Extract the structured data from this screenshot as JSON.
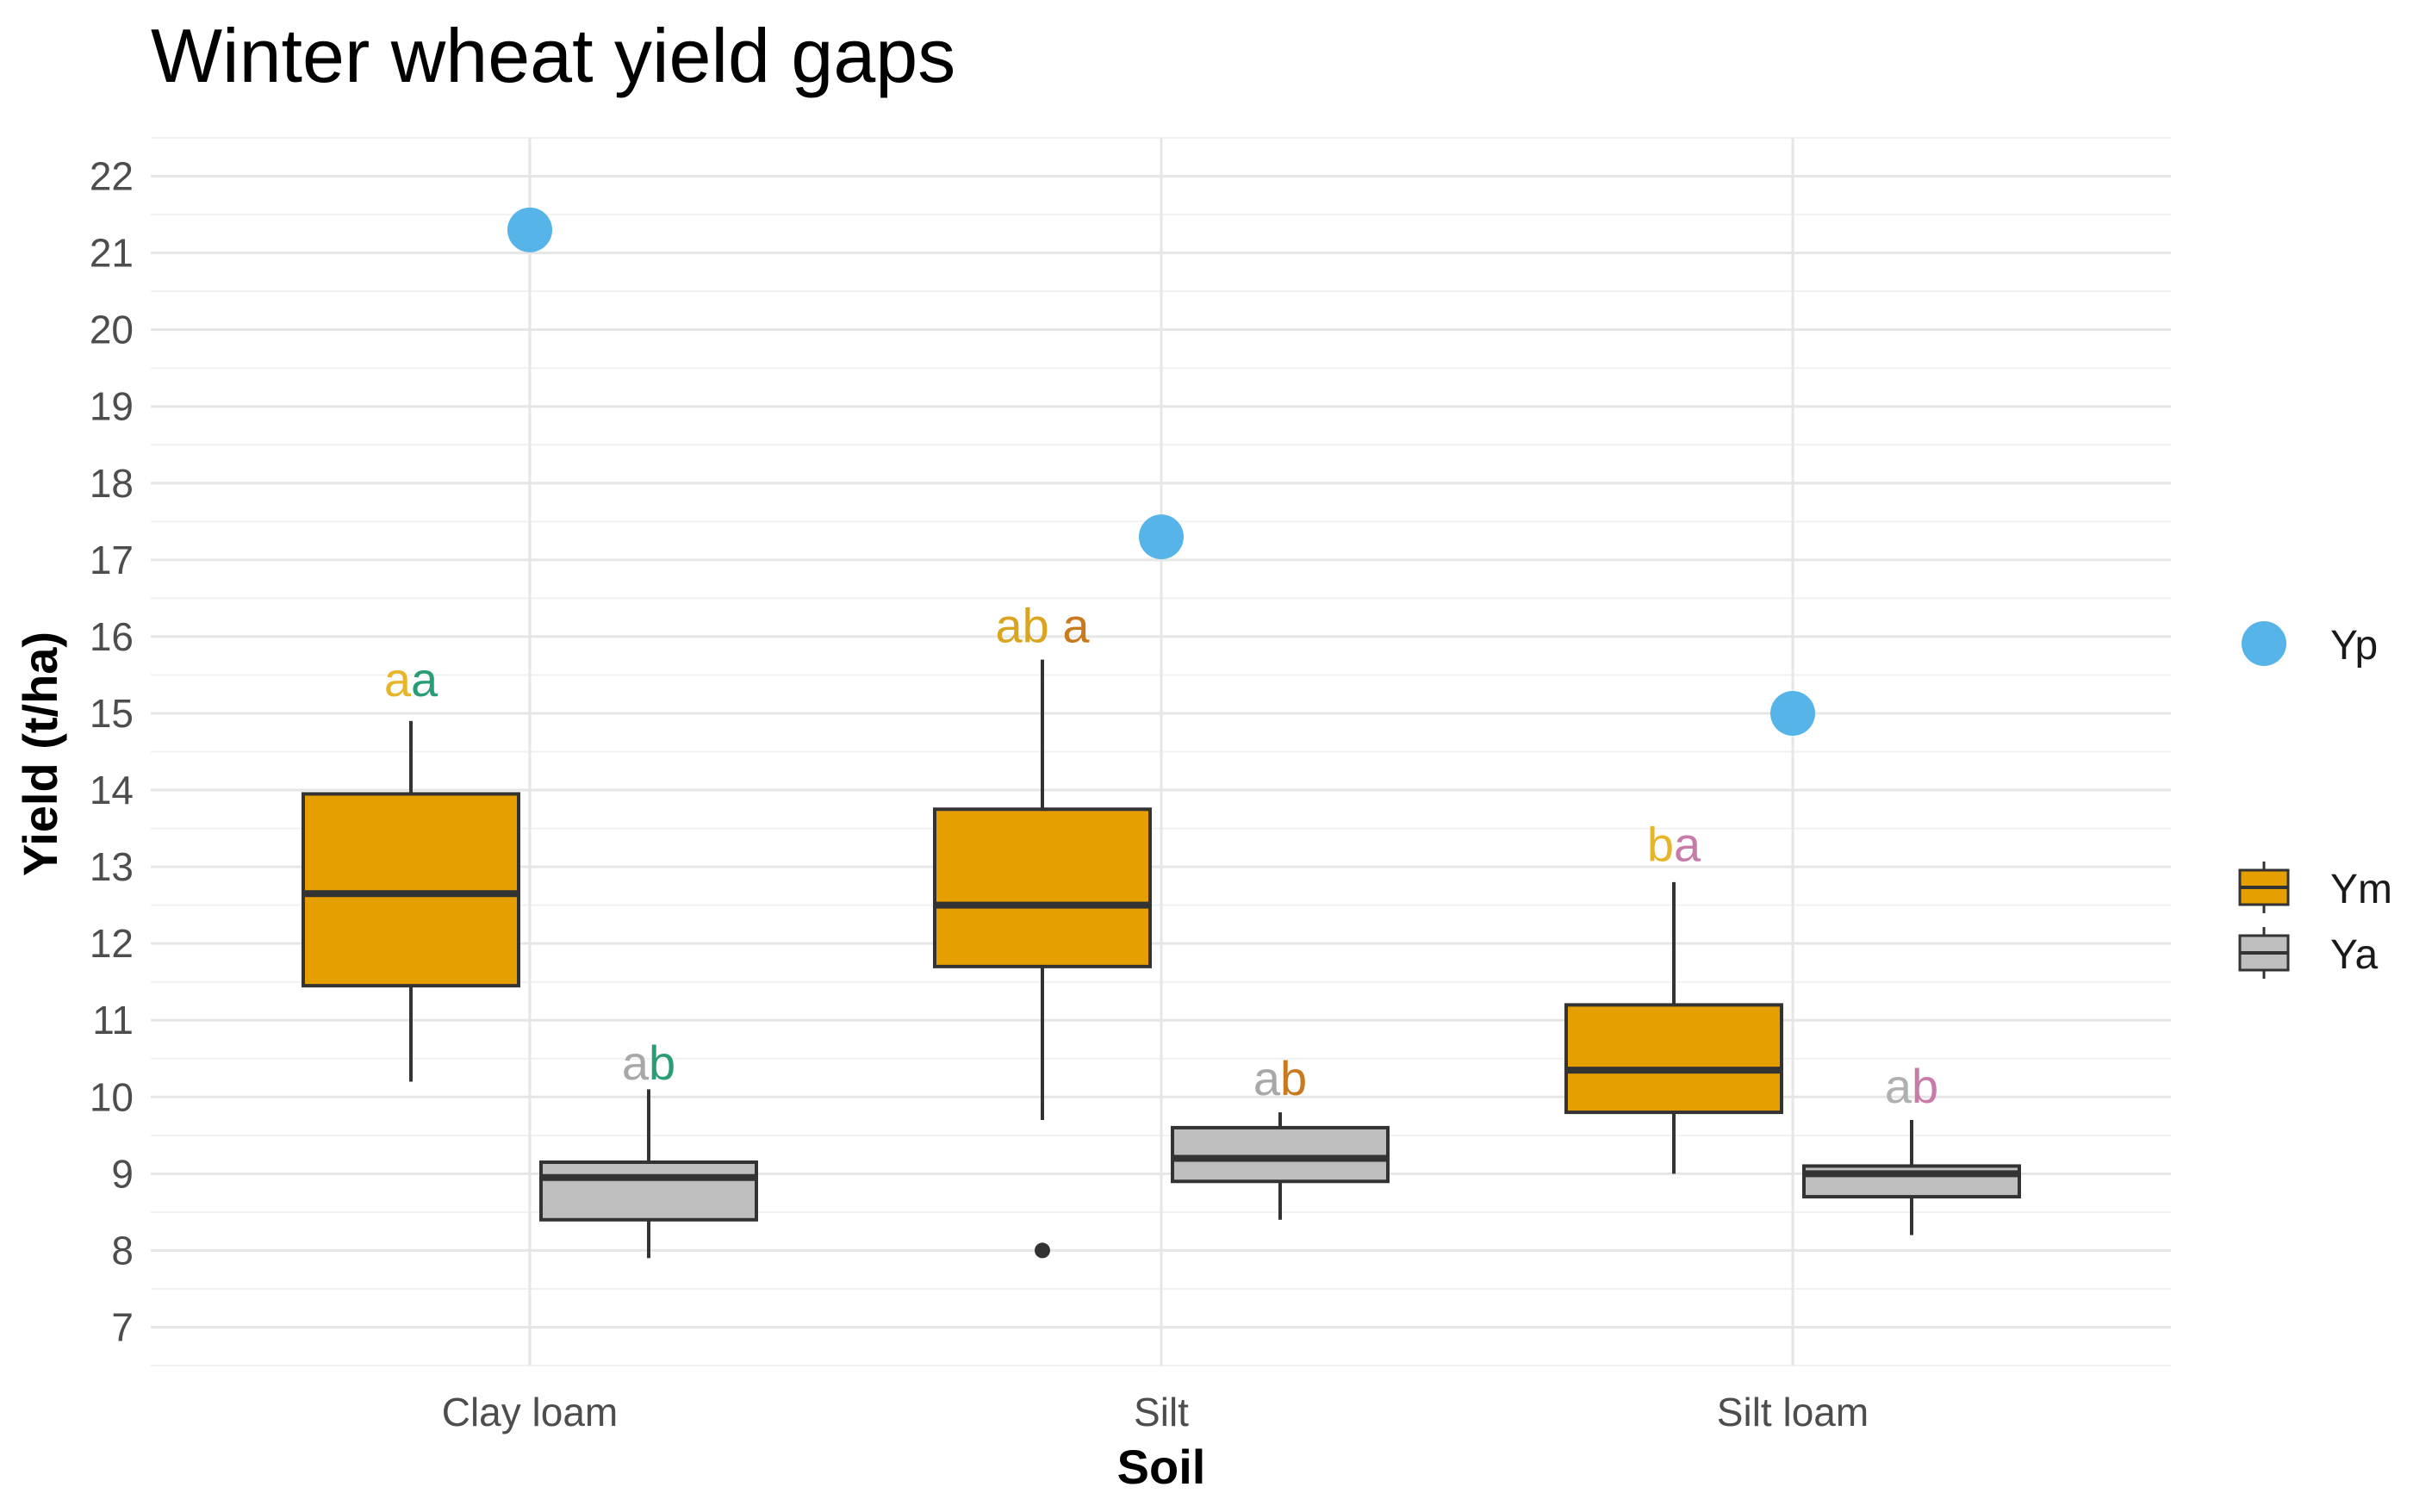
{
  "chart_data": {
    "type": "boxplot",
    "title": "Winter wheat yield gaps",
    "xlabel": "Soil",
    "ylabel": "Yield (t/ha)",
    "ylim": [
      6.5,
      22.5
    ],
    "yticks": [
      7,
      8,
      9,
      10,
      11,
      12,
      13,
      14,
      15,
      16,
      17,
      18,
      19,
      20,
      21,
      22
    ],
    "grid": true,
    "categories": [
      "Clay loam",
      "Silt",
      "Silt loam"
    ],
    "colors": {
      "Yp": "#56B4E9",
      "Ym": "#E69F00",
      "Ya": "#BEBEBE"
    },
    "series": [
      {
        "name": "Ym",
        "kind": "box",
        "boxes": [
          {
            "category": "Clay loam",
            "whisker_low": 10.2,
            "q1": 11.45,
            "median": 12.65,
            "q3": 13.95,
            "whisker_high": 14.9,
            "outliers": []
          },
          {
            "category": "Silt",
            "whisker_low": 9.7,
            "q1": 11.7,
            "median": 12.5,
            "q3": 13.75,
            "whisker_high": 15.7,
            "outliers": [
              8.0
            ]
          },
          {
            "category": "Silt loam",
            "whisker_low": 9.0,
            "q1": 9.8,
            "median": 10.35,
            "q3": 11.2,
            "whisker_high": 12.8,
            "outliers": []
          }
        ]
      },
      {
        "name": "Ya",
        "kind": "box",
        "boxes": [
          {
            "category": "Clay loam",
            "whisker_low": 7.9,
            "q1": 8.4,
            "median": 8.95,
            "q3": 9.15,
            "whisker_high": 10.1,
            "outliers": []
          },
          {
            "category": "Silt",
            "whisker_low": 8.4,
            "q1": 8.9,
            "median": 9.2,
            "q3": 9.6,
            "whisker_high": 9.8,
            "outliers": []
          },
          {
            "category": "Silt loam",
            "whisker_low": 8.2,
            "q1": 8.7,
            "median": 9.0,
            "q3": 9.1,
            "whisker_high": 9.7,
            "outliers": []
          }
        ]
      },
      {
        "name": "Yp",
        "kind": "point",
        "values": [
          21.3,
          17.3,
          15.0
        ]
      }
    ],
    "annotations": [
      {
        "category": "Clay loam",
        "series": "Ym",
        "y": 15.45,
        "parts": [
          {
            "text": "a",
            "color": "#E6B628"
          },
          {
            "text": "a",
            "color": "#2A9D78"
          }
        ]
      },
      {
        "category": "Clay loam",
        "series": "Ya",
        "y": 10.45,
        "parts": [
          {
            "text": "a",
            "color": "#A8A8A8"
          },
          {
            "text": "b",
            "color": "#2A9D78"
          }
        ]
      },
      {
        "category": "Silt",
        "series": "Ym",
        "y": 16.15,
        "parts": [
          {
            "text": "ab",
            "color": "#D9A520"
          },
          {
            "text": " ",
            "color": "#000000"
          },
          {
            "text": "a",
            "color": "#C97A1E"
          }
        ]
      },
      {
        "category": "Silt",
        "series": "Ya",
        "y": 10.25,
        "parts": [
          {
            "text": "a",
            "color": "#A8A8A8"
          },
          {
            "text": "b",
            "color": "#C97A1E"
          }
        ]
      },
      {
        "category": "Silt loam",
        "series": "Ym",
        "y": 13.3,
        "parts": [
          {
            "text": "b",
            "color": "#E6B628"
          },
          {
            "text": "a",
            "color": "#C87BA8"
          }
        ]
      },
      {
        "category": "Silt loam",
        "series": "Ya",
        "y": 10.15,
        "parts": [
          {
            "text": "a",
            "color": "#B0B0B0"
          },
          {
            "text": "b",
            "color": "#C87BA8"
          }
        ]
      }
    ],
    "legend": [
      {
        "title": "",
        "entries": [
          {
            "key": "Yp",
            "label": "Yp"
          }
        ]
      },
      {
        "title": "",
        "entries": [
          {
            "key": "Ym",
            "label": "Ym"
          },
          {
            "key": "Ya",
            "label": "Ya"
          }
        ]
      }
    ],
    "legend_position": "right"
  }
}
